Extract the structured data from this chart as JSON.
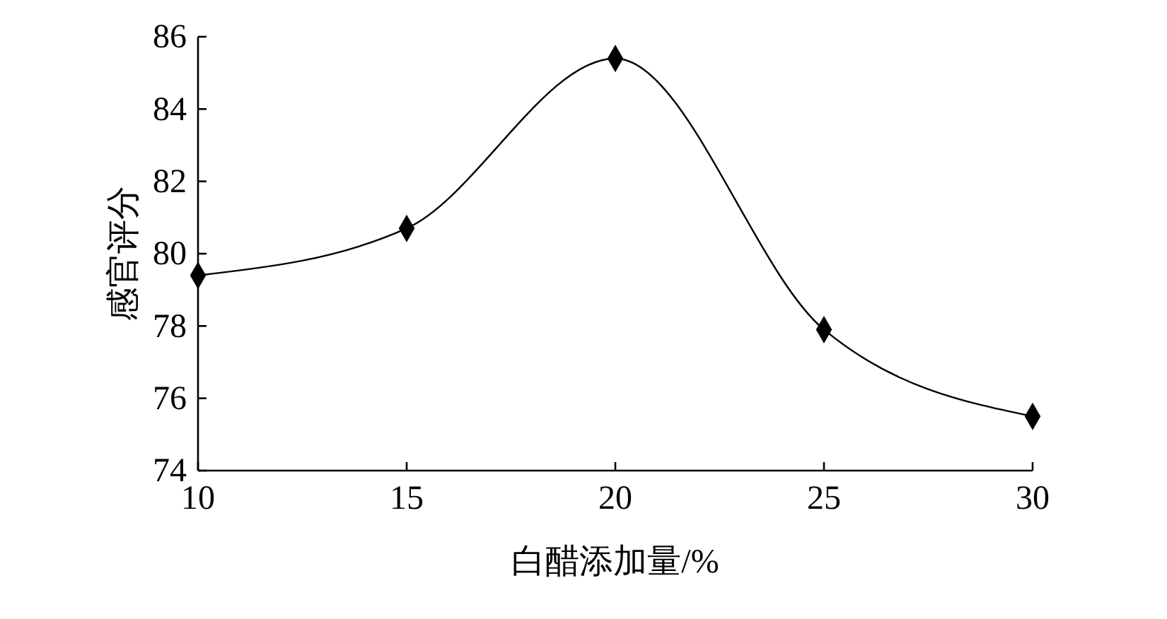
{
  "chart_data": {
    "type": "line",
    "xlabel": "白醋添加量/%",
    "ylabel": "感官评分",
    "x": [
      10,
      15,
      20,
      25,
      30
    ],
    "series": [
      {
        "color": "#000000",
        "values": [
          79.4,
          80.7,
          85.4,
          77.9,
          75.5
        ]
      }
    ],
    "xlim": [
      10,
      30
    ],
    "xticks": [
      10,
      15,
      20,
      25,
      30
    ],
    "ylim": [
      74,
      86
    ],
    "yticks": [
      74,
      76,
      78,
      80,
      82,
      84,
      86
    ],
    "marker": "diamond",
    "line_style": "solid"
  }
}
